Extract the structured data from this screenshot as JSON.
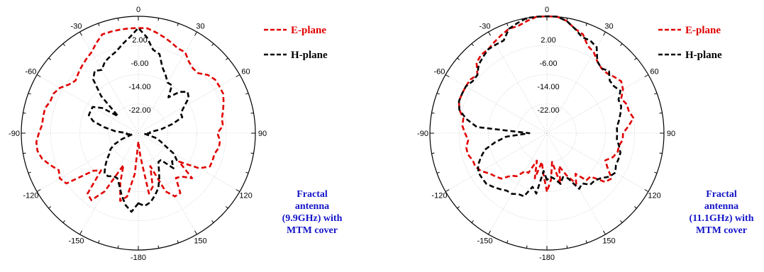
{
  "chart_data": [
    {
      "type": "polar-line",
      "caption_lines": [
        "Fractal",
        "antenna",
        "(9.9GHz) with",
        "MTM cover"
      ],
      "angle_labels": [
        "0",
        "30",
        "60",
        "90",
        "120",
        "150",
        "-180",
        "-150",
        "-120",
        "-90",
        "-60",
        "-30"
      ],
      "radial_labels": [
        "2.00",
        "-6.00",
        "-14.00",
        "-22.00"
      ],
      "rlim": [
        -30,
        10
      ],
      "legend": {
        "placement": "right",
        "entries": [
          "E-plane",
          "H-plane"
        ]
      },
      "series": [
        {
          "name": "E-plane",
          "color": "#e00000",
          "theta": [
            -180,
            -175,
            -170,
            -165,
            -160,
            -155,
            -150,
            -145,
            -140,
            -135,
            -130,
            -125,
            -120,
            -115,
            -110,
            -105,
            -100,
            -95,
            -90,
            -85,
            -80,
            -75,
            -70,
            -65,
            -60,
            -55,
            -50,
            -45,
            -40,
            -35,
            -30,
            -25,
            -20,
            -15,
            -10,
            -5,
            0,
            5,
            10,
            15,
            20,
            25,
            30,
            35,
            40,
            45,
            50,
            55,
            60,
            65,
            70,
            75,
            80,
            85,
            90,
            95,
            100,
            105,
            110,
            115,
            120,
            125,
            130,
            135,
            140,
            145,
            150,
            155,
            160,
            165,
            170,
            175
          ],
          "r": [
            -27,
            -16,
            -8,
            -6,
            -12,
            -18,
            -7,
            -2,
            -3,
            -12,
            -10,
            0,
            1,
            0,
            2,
            4,
            5,
            5,
            4,
            3,
            3,
            3,
            2,
            2,
            1,
            -1,
            -2,
            -1,
            0,
            1,
            2,
            4,
            6,
            6,
            6,
            6,
            6,
            6,
            5,
            4,
            3,
            2,
            2,
            0,
            -1,
            -1,
            1,
            2,
            2,
            2,
            1,
            0,
            -1,
            -1,
            -3,
            -2,
            -2,
            -3,
            -3,
            -3,
            -6,
            -13,
            -6,
            -9,
            -10,
            -5,
            -5,
            -8,
            -18,
            -11,
            -9,
            -22
          ]
        },
        {
          "name": "H-plane",
          "color": "#000000",
          "theta": [
            -180,
            -175,
            -170,
            -165,
            -160,
            -155,
            -150,
            -145,
            -140,
            -135,
            -130,
            -125,
            -120,
            -115,
            -110,
            -105,
            -100,
            -95,
            -90,
            -85,
            -80,
            -75,
            -70,
            -65,
            -60,
            -55,
            -50,
            -45,
            -40,
            -35,
            -30,
            -25,
            -20,
            -15,
            -10,
            -5,
            0,
            5,
            10,
            15,
            20,
            25,
            30,
            35,
            40,
            45,
            50,
            55,
            60,
            65,
            70,
            75,
            80,
            85,
            90,
            95,
            100,
            105,
            110,
            115,
            120,
            125,
            130,
            135,
            140,
            145,
            150,
            155,
            160,
            165,
            170,
            175
          ],
          "r": [
            -6,
            -3,
            -5,
            -8,
            -11,
            -13,
            -13,
            -12,
            -12,
            -14,
            -16,
            -18,
            -19,
            -21,
            -24,
            -27,
            -28,
            -26,
            -26,
            -22,
            -18,
            -14,
            -12,
            -12,
            -12,
            -15,
            -21,
            -12,
            -6,
            -4,
            -5,
            -3,
            -2,
            -1,
            1,
            3,
            6,
            3,
            -1,
            -2,
            -6,
            -8,
            -10,
            -10,
            -14,
            -10,
            -8,
            -9,
            -12,
            -14,
            -14,
            -18,
            -22,
            -26,
            -26,
            -28,
            -27,
            -24,
            -22,
            -20,
            -16,
            -14,
            -15,
            -13,
            -18,
            -18,
            -16,
            -13,
            -10,
            -8,
            -6,
            -5
          ]
        }
      ]
    },
    {
      "type": "polar-line",
      "caption_lines": [
        "Fractal",
        "antenna",
        "(11.1GHz) with",
        "MTM cover"
      ],
      "angle_labels": [
        "0",
        "30",
        "60",
        "90",
        "120",
        "150",
        "-180",
        "-150",
        "-120",
        "-90",
        "-60",
        "-30"
      ],
      "radial_labels": [
        "2.00",
        "-6.00",
        "-14.00",
        "-22.00"
      ],
      "rlim": [
        -30,
        10
      ],
      "legend": {
        "placement": "right",
        "entries": [
          "E-plane",
          "H-plane"
        ]
      },
      "series": [
        {
          "name": "E-plane",
          "color": "#e00000",
          "theta": [
            -180,
            -175,
            -170,
            -165,
            -160,
            -155,
            -150,
            -145,
            -140,
            -135,
            -130,
            -125,
            -120,
            -115,
            -110,
            -105,
            -100,
            -95,
            -90,
            -85,
            -80,
            -75,
            -70,
            -65,
            -60,
            -55,
            -50,
            -45,
            -40,
            -35,
            -30,
            -25,
            -20,
            -15,
            -10,
            -5,
            0,
            5,
            10,
            15,
            20,
            25,
            30,
            35,
            40,
            45,
            50,
            55,
            60,
            65,
            70,
            75,
            80,
            85,
            90,
            95,
            100,
            105,
            110,
            115,
            120,
            125,
            130,
            135,
            140,
            145,
            150,
            155,
            160,
            165,
            170,
            175
          ],
          "r": [
            -10,
            -16,
            -20,
            -14,
            -20,
            -15,
            -15,
            -12,
            -11,
            -8,
            -7,
            -6,
            -4,
            -3,
            -3,
            -2,
            -2,
            -3,
            -2,
            -1,
            -1,
            1,
            2,
            2,
            2,
            2,
            1,
            4,
            5,
            5,
            6,
            7,
            8,
            8,
            9,
            10,
            10,
            10,
            9,
            7,
            6,
            3,
            2,
            0,
            -1,
            -1,
            0,
            1,
            0,
            -2,
            -1,
            -1,
            0,
            -2,
            -4,
            -4,
            -5,
            -5,
            -6,
            -8,
            -6,
            -3,
            -4,
            -9,
            -9,
            -13,
            -10,
            -14,
            -18,
            -12,
            -20,
            -14
          ]
        },
        {
          "name": "H-plane",
          "color": "#000000",
          "theta": [
            -180,
            -175,
            -170,
            -165,
            -160,
            -155,
            -150,
            -145,
            -140,
            -135,
            -130,
            -125,
            -120,
            -115,
            -110,
            -105,
            -100,
            -95,
            -90,
            -85,
            -80,
            -75,
            -70,
            -65,
            -60,
            -55,
            -50,
            -45,
            -40,
            -35,
            -30,
            -25,
            -20,
            -15,
            -10,
            -5,
            0,
            5,
            10,
            15,
            20,
            25,
            30,
            35,
            40,
            45,
            50,
            55,
            60,
            65,
            70,
            75,
            80,
            85,
            90,
            95,
            100,
            105,
            110,
            115,
            120,
            125,
            130,
            135,
            140,
            145,
            150,
            155,
            160,
            165,
            170,
            175
          ],
          "r": [
            -14,
            -17,
            -9,
            -11,
            -7,
            -7,
            -6,
            -6,
            -5,
            -4,
            -3,
            -3,
            -3,
            -4,
            -6,
            -8,
            -12,
            -16,
            -24,
            -6,
            -2,
            1,
            2,
            2,
            2,
            1,
            1,
            3,
            4,
            5,
            5,
            5,
            8,
            9,
            10,
            10,
            10,
            10,
            9,
            7,
            5,
            5,
            4,
            0,
            -1,
            0,
            -2,
            -2,
            -1,
            -3,
            -3,
            -4,
            -5,
            -6,
            -6,
            -6,
            -5,
            -4,
            -4,
            -4,
            -3,
            -4,
            -6,
            -7,
            -7,
            -9,
            -8,
            -13,
            -14,
            -12,
            -14,
            -15
          ]
        }
      ]
    }
  ]
}
